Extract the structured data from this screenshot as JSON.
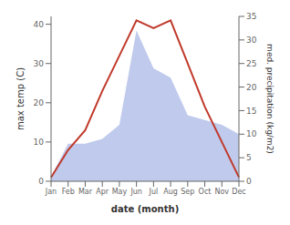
{
  "chart_data": {
    "type": "line",
    "categories": [
      "Jan",
      "Feb",
      "Mar",
      "Apr",
      "May",
      "Jun",
      "Jul",
      "Aug",
      "Sep",
      "Oct",
      "Nov",
      "Dec"
    ],
    "series": [
      {
        "type": "line",
        "color": "#c0392b",
        "values": [
          1,
          8,
          13,
          23,
          32,
          41,
          39,
          41,
          30,
          19,
          10,
          1
        ]
      },
      {
        "type": "area",
        "axis": "y2",
        "color": "#b8c4ea",
        "values": [
          1,
          8,
          8,
          9,
          12,
          32,
          24,
          22,
          14,
          13,
          12,
          10
        ]
      }
    ],
    "xlabel": "date (month)",
    "ylabel": "max temp (C)",
    "y2label": "med. precipitation (kg/m2)",
    "ylim": [
      0,
      42
    ],
    "yticks": [
      0,
      10,
      20,
      30,
      40
    ],
    "y2lim": [
      0,
      35
    ],
    "y2ticks": [
      0,
      5,
      10,
      15,
      20,
      25,
      30,
      35
    ]
  }
}
